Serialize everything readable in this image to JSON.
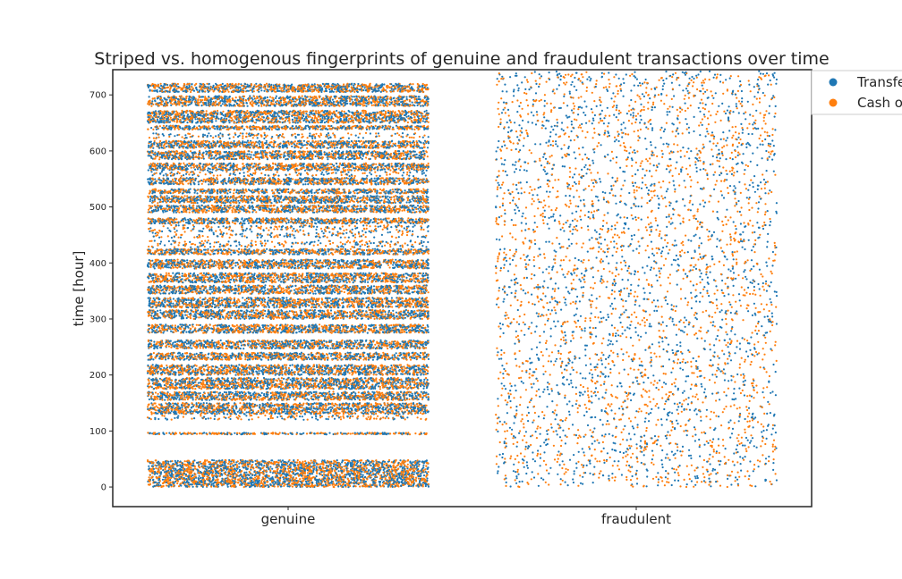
{
  "chart_data": {
    "type": "scatter",
    "title": "Striped vs. homogenous fingerprints of genuine and fraudulent transactions over time",
    "xlabel": "",
    "ylabel": "time [hour]",
    "categories": [
      "genuine",
      "fraudulent"
    ],
    "ylim": [
      -35,
      745
    ],
    "yticks": [
      0,
      100,
      200,
      300,
      400,
      500,
      600,
      700
    ],
    "grid": false,
    "legend_position": "outside top-right",
    "series": [
      {
        "name": "Transfer",
        "color": "#1f77b4"
      },
      {
        "name": "Cash out",
        "color": "#ff7f0e"
      }
    ],
    "genuine_dense_hour_bands": [
      [
        0,
        48
      ],
      [
        94,
        97
      ],
      [
        130,
        150
      ],
      [
        155,
        170
      ],
      [
        175,
        195
      ],
      [
        200,
        218
      ],
      [
        227,
        240
      ],
      [
        247,
        262
      ],
      [
        275,
        290
      ],
      [
        300,
        316
      ],
      [
        320,
        338
      ],
      [
        345,
        360
      ],
      [
        365,
        382
      ],
      [
        390,
        406
      ],
      [
        415,
        425
      ],
      [
        470,
        480
      ],
      [
        490,
        503
      ],
      [
        507,
        520
      ],
      [
        524,
        532
      ],
      [
        540,
        552
      ],
      [
        565,
        578
      ],
      [
        585,
        600
      ],
      [
        605,
        618
      ],
      [
        638,
        645
      ],
      [
        650,
        672
      ],
      [
        680,
        698
      ],
      [
        705,
        720
      ]
    ],
    "genuine_sparse_hour_bands": [
      [
        120,
        128
      ],
      [
        428,
        440
      ],
      [
        445,
        468
      ],
      [
        555,
        563
      ],
      [
        622,
        632
      ]
    ],
    "genuine_hour_range": [
      0,
      720
    ],
    "fraudulent_hour_range": [
      0,
      743
    ],
    "fraudulent_distribution": "uniform"
  }
}
